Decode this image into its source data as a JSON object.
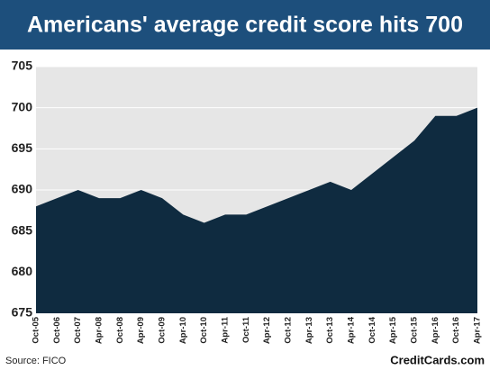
{
  "chart_data": {
    "type": "area",
    "title": "Americans' average credit score hits 700",
    "categories": [
      "Oct-05",
      "Oct-06",
      "Oct-07",
      "Apr-08",
      "Oct-08",
      "Apr-09",
      "Oct-09",
      "Apr-10",
      "Oct-10",
      "Apr-11",
      "Oct-11",
      "Apr-12",
      "Oct-12",
      "Apr-13",
      "Oct-13",
      "Apr-14",
      "Oct-14",
      "Apr-15",
      "Oct-15",
      "Apr-16",
      "Oct-16",
      "Apr-17"
    ],
    "values": [
      688,
      689,
      690,
      689,
      689,
      690,
      689,
      687,
      686,
      687,
      687,
      688,
      689,
      690,
      691,
      690,
      692,
      694,
      696,
      699,
      699,
      700
    ],
    "color": "#0f2b40",
    "ylim": [
      675,
      705
    ],
    "yticks": [
      675,
      680,
      685,
      690,
      695,
      700,
      705
    ],
    "grid": true,
    "source": "Source: FICO",
    "brand": "CreditCards.com"
  }
}
